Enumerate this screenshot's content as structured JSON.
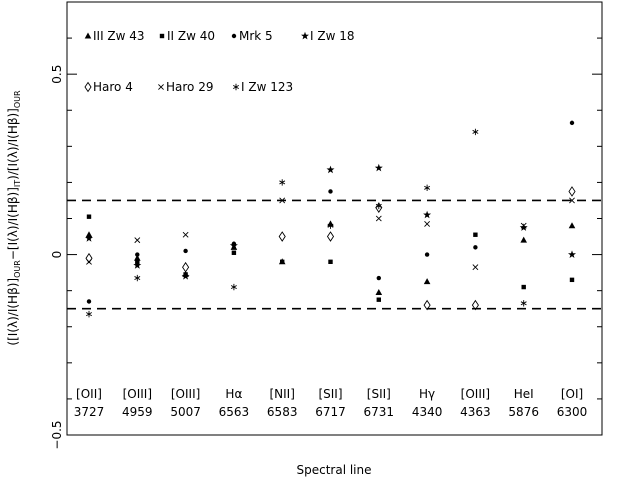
{
  "chart_data": {
    "type": "scatter",
    "xlabel": "Spectral line",
    "ylabel_parts": [
      "([I(λ)/I(Hβ)]",
      "OUR",
      "−[I(λ)/I(Hβ)]",
      "IT",
      ")/[I(λ)/I(Hβ)]",
      "OUR"
    ],
    "ylim": [
      -0.5,
      0.7
    ],
    "yticks": [
      -0.5,
      0,
      0.5
    ],
    "ytick_labels": [
      "−0.5",
      "0",
      "0.5"
    ],
    "grid": false,
    "legend_position": "top-left",
    "categories": [
      {
        "name": "[OII]",
        "wavelength": "3727"
      },
      {
        "name": "[OIII]",
        "wavelength": "4959"
      },
      {
        "name": "[OIII]",
        "wavelength": "5007"
      },
      {
        "name": "Hα",
        "wavelength": "6563"
      },
      {
        "name": "[NII]",
        "wavelength": "6583"
      },
      {
        "name": "[SII]",
        "wavelength": "6717"
      },
      {
        "name": "[SII]",
        "wavelength": "6731"
      },
      {
        "name": "Hγ",
        "wavelength": "4340"
      },
      {
        "name": "[OIII]",
        "wavelength": "4363"
      },
      {
        "name": "HeI",
        "wavelength": "5876"
      },
      {
        "name": "[OI]",
        "wavelength": "6300"
      }
    ],
    "reference_lines": [
      {
        "y": 0.15,
        "style": "dashed"
      },
      {
        "y": -0.15,
        "style": "dashed"
      }
    ],
    "series": [
      {
        "name": "III Zw 43",
        "marker": "triangle",
        "values": [
          0.055,
          -0.01,
          -0.055,
          0.02,
          -0.02,
          0.085,
          -0.105,
          -0.075,
          null,
          0.04,
          0.08
        ]
      },
      {
        "name": "II Zw 40",
        "marker": "square",
        "values": [
          0.105,
          -0.02,
          -0.055,
          0.005,
          -0.02,
          -0.02,
          -0.125,
          null,
          0.055,
          -0.09,
          -0.07
        ]
      },
      {
        "name": "Mrk 5",
        "marker": "circle",
        "values": [
          -0.13,
          0.0,
          0.01,
          0.03,
          null,
          0.175,
          -0.065,
          0.0,
          0.02,
          null,
          0.365
        ]
      },
      {
        "name": "I Zw 18",
        "marker": "star",
        "values": [
          0.045,
          -0.03,
          -0.06,
          0.025,
          null,
          0.235,
          0.24,
          0.11,
          null,
          0.075,
          0.0
        ]
      },
      {
        "name": "Haro 4",
        "marker": "diamond",
        "values": [
          -0.01,
          null,
          -0.035,
          null,
          0.05,
          0.05,
          0.13,
          -0.14,
          -0.14,
          null,
          0.175
        ]
      },
      {
        "name": "Haro 29",
        "marker": "cross",
        "values": [
          -0.02,
          0.04,
          0.055,
          null,
          0.15,
          null,
          0.1,
          0.085,
          -0.035,
          0.08,
          0.15
        ]
      },
      {
        "name": "I Zw 123",
        "marker": "asterisk",
        "values": [
          -0.165,
          -0.065,
          null,
          -0.09,
          0.2,
          0.08,
          0.135,
          0.185,
          0.34,
          -0.135,
          null
        ]
      }
    ]
  }
}
